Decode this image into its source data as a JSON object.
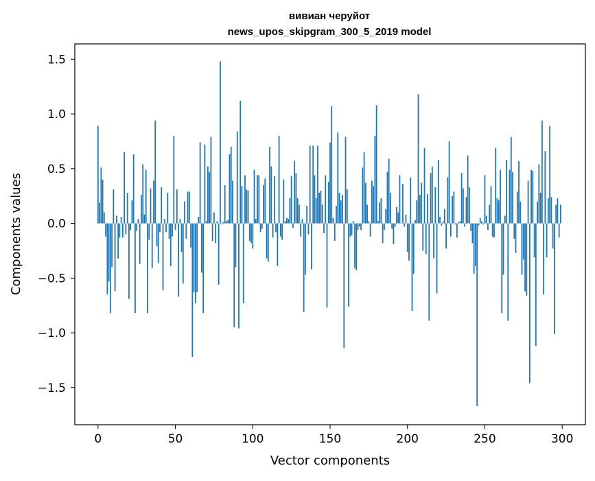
{
  "chart_data": {
    "type": "bar",
    "title": "вивиан черуйот",
    "subtitle": "news_upos_skipgram_300_5_2019 model",
    "xlabel": "Vector components",
    "ylabel": "Components values",
    "xlim": [
      -15,
      315
    ],
    "ylim": [
      -1.84,
      1.64
    ],
    "xticks": [
      0,
      50,
      100,
      150,
      200,
      250,
      300
    ],
    "yticks": [
      -1.5,
      -1.0,
      -0.5,
      0.0,
      0.5,
      1.0,
      1.5
    ],
    "ytick_labels": [
      "−1.5",
      "−1.0",
      "−0.5",
      "0.0",
      "0.5",
      "1.0",
      "1.5"
    ],
    "bar_color": "#1f77b4",
    "values": [
      0.89,
      0.19,
      0.51,
      0.4,
      0.1,
      -0.12,
      -0.65,
      -0.53,
      -0.82,
      -0.4,
      0.31,
      -0.62,
      0.07,
      -0.32,
      -0.13,
      0.06,
      -0.13,
      0.65,
      -0.1,
      0.28,
      -0.69,
      -0.06,
      0.21,
      0.63,
      -0.82,
      -0.07,
      0.04,
      -0.37,
      0.26,
      0.54,
      0.08,
      0.49,
      -0.82,
      -0.15,
      0.32,
      -0.41,
      0.39,
      0.94,
      -0.21,
      -0.36,
      -0.08,
      0.33,
      -0.61,
      0.04,
      -0.08,
      0.28,
      -0.14,
      -0.39,
      -0.12,
      0.8,
      -0.06,
      0.31,
      -0.67,
      0.04,
      -0.26,
      -0.55,
      0.2,
      -0.14,
      0.29,
      0.29,
      -0.22,
      -1.22,
      -0.63,
      -0.73,
      -0.63,
      0.06,
      0.74,
      -0.45,
      -0.82,
      0.72,
      0.02,
      0.52,
      0.47,
      0.79,
      -0.16,
      0.1,
      -0.18,
      0.02,
      -0.56,
      1.48,
      -0.01,
      0.01,
      0.35,
      0.02,
      0.03,
      0.63,
      0.7,
      0.39,
      -0.95,
      -0.4,
      0.84,
      -0.96,
      1.12,
      0.34,
      -0.73,
      0.44,
      0.31,
      0.3,
      -0.16,
      -0.18,
      -0.23,
      0.49,
      0.04,
      0.44,
      0.44,
      -0.08,
      -0.05,
      0.35,
      0.41,
      -0.32,
      -0.35,
      0.7,
      0.52,
      -0.13,
      0.43,
      -0.08,
      -0.39,
      0.8,
      -0.12,
      -0.15,
      0.4,
      0.02,
      0.05,
      0.04,
      0.23,
      0.43,
      -0.04,
      0.57,
      0.46,
      0.23,
      0.17,
      -0.12,
      0.04,
      -0.81,
      -0.47,
      0.16,
      -0.1,
      0.71,
      -0.42,
      0.71,
      0.44,
      0.23,
      0.71,
      0.28,
      0.3,
      0.17,
      -0.09,
      0.44,
      -0.77,
      0.38,
      0.74,
      1.07,
      0.05,
      -0.16,
      0.16,
      0.83,
      0.28,
      0.21,
      0.26,
      -1.14,
      0.79,
      0.31,
      -0.76,
      -0.12,
      -0.11,
      0.02,
      -0.41,
      -0.43,
      -0.06,
      -0.03,
      -0.06,
      0.51,
      0.65,
      0.37,
      0.17,
      0.02,
      -0.12,
      0.39,
      0.34,
      0.8,
      1.08,
      0.02,
      0.19,
      0.23,
      -0.18,
      -0.06,
      0.13,
      0.47,
      0.59,
      0.28,
      -0.05,
      -0.19,
      -0.03,
      0.15,
      0.1,
      0.44,
      0.0,
      0.36,
      -0.03,
      0.08,
      -0.26,
      -0.34,
      0.42,
      -0.8,
      -0.46,
      0.03,
      0.21,
      1.18,
      0.26,
      0.37,
      -0.25,
      0.69,
      -0.28,
      0.27,
      -0.89,
      0.46,
      0.52,
      -0.32,
      0.33,
      -0.64,
      0.58,
      0.06,
      -0.02,
      0.02,
      0.13,
      -0.23,
      0.42,
      0.75,
      -0.12,
      0.25,
      0.29,
      -0.01,
      -0.13,
      0.01,
      0.02,
      0.46,
      0.32,
      -0.03,
      0.24,
      0.62,
      0.33,
      -0.07,
      -0.18,
      -0.46,
      -0.39,
      -1.67,
      -0.02,
      0.05,
      0.02,
      -0.01,
      0.44,
      0.07,
      -0.06,
      0.17,
      0.34,
      -0.12,
      -0.13,
      0.69,
      0.23,
      0.21,
      0.49,
      -0.82,
      -0.47,
      0.07,
      0.58,
      -0.89,
      0.49,
      0.79,
      0.47,
      -0.14,
      -0.27,
      0.29,
      0.57,
      0.2,
      -0.47,
      -0.33,
      -0.62,
      -0.66,
      0.39,
      -1.46,
      0.49,
      0.48,
      -0.31,
      -1.12,
      0.2,
      0.54,
      0.28,
      0.94,
      -0.65,
      0.66,
      -0.31,
      0.23,
      0.89,
      0.24,
      -0.23,
      -1.01,
      0.17,
      0.23,
      -0.13,
      0.17
    ]
  }
}
